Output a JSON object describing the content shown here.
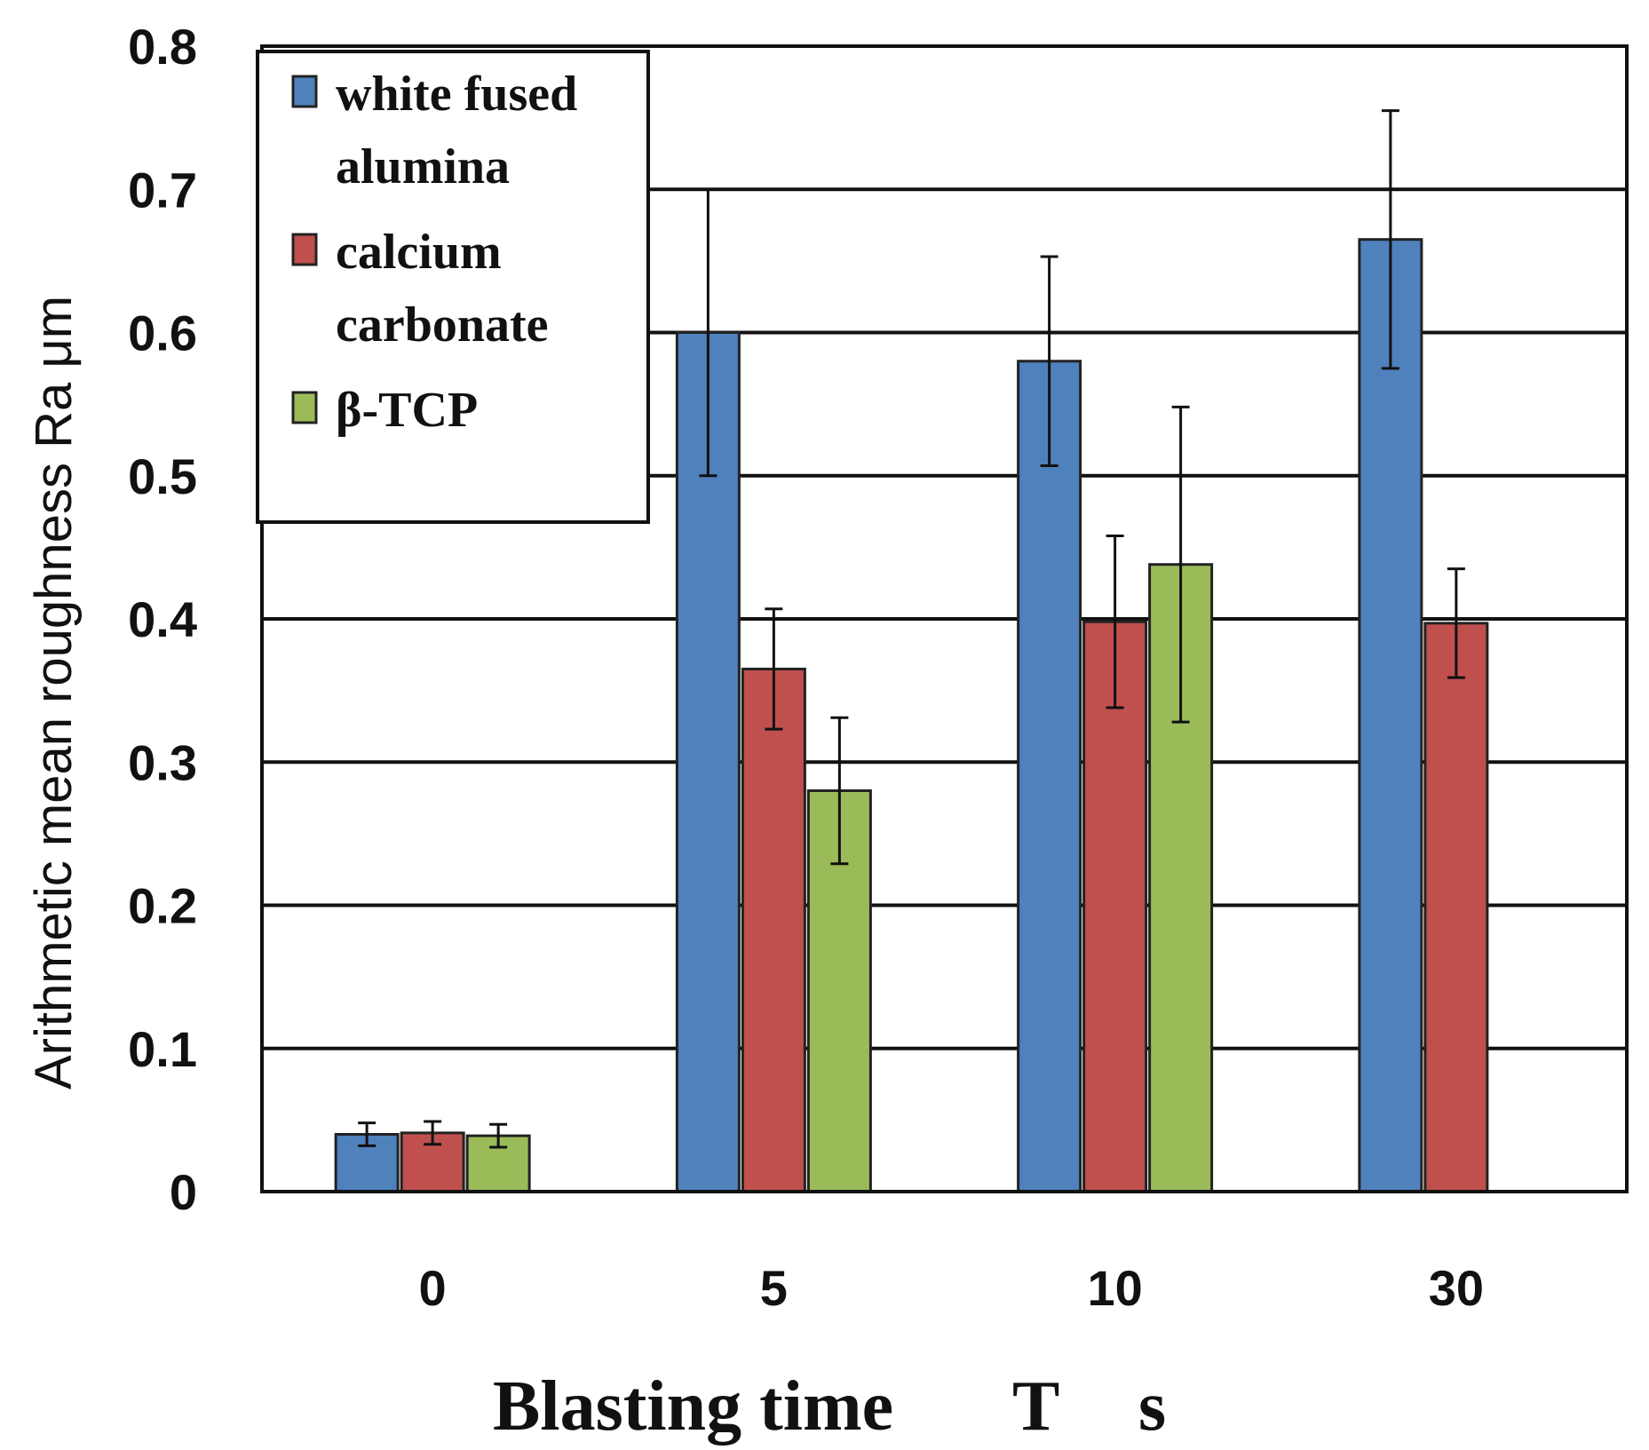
{
  "chart_data": {
    "type": "bar",
    "title": "",
    "xlabel": "Blasting time",
    "xlabel_symbol": "T",
    "xlabel_unit": "s",
    "ylabel": "Arithmetic mean roughness Ra μm",
    "categories": [
      "0",
      "5",
      "10",
      "30"
    ],
    "ylim": [
      0,
      0.8
    ],
    "yticks": [
      "0",
      "0.1",
      "0.2",
      "0.3",
      "0.4",
      "0.5",
      "0.6",
      "0.7",
      "0.8"
    ],
    "grid": true,
    "legend_position": "top-left",
    "series": [
      {
        "name": "white fused alumina",
        "legend_lines": [
          "white fused",
          "alumina"
        ],
        "color": "#4F81BD",
        "values": [
          0.04,
          0.6,
          0.58,
          0.665
        ],
        "errors": [
          0.008,
          0.1,
          0.073,
          0.09
        ]
      },
      {
        "name": "calcium carbonate",
        "legend_lines": [
          "calcium",
          "carbonate"
        ],
        "color": "#C0504D",
        "values": [
          0.041,
          0.365,
          0.398,
          0.397
        ],
        "errors": [
          0.008,
          0.042,
          0.06,
          0.038
        ]
      },
      {
        "name": "β-TCP",
        "legend_lines": [
          "β-TCP"
        ],
        "color": "#9BBB59",
        "values": [
          0.039,
          0.28,
          0.438,
          null
        ],
        "errors": [
          0.008,
          0.051,
          0.11,
          null
        ]
      }
    ]
  }
}
